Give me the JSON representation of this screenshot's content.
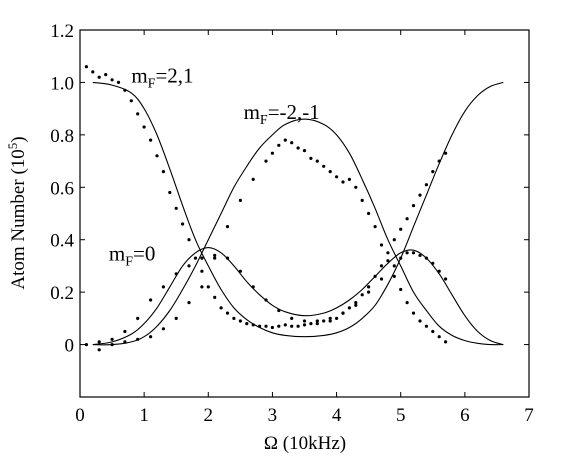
{
  "chart_data": {
    "type": "scatter",
    "title": "",
    "xlabel": "Ω (10kHz)",
    "ylabel": "Atom Number (10",
    "ylabel_sup": "5",
    "ylabel_close": ")",
    "xlim": [
      0,
      7
    ],
    "ylim": [
      -0.2,
      1.2
    ],
    "xticks": [
      "0",
      "1",
      "2",
      "3",
      "4",
      "5",
      "6",
      "7"
    ],
    "yticks": [
      "0",
      "0.2",
      "0.4",
      "0.6",
      "0.8",
      "1.0",
      "1.2"
    ],
    "grid": false,
    "legend": "none",
    "annotations": [
      {
        "main": "m",
        "sub": "F",
        "rest": "=2,1",
        "x": 0.8,
        "y": 1.0
      },
      {
        "main": "m",
        "sub": "F",
        "rest": "=-2,-1",
        "x": 2.55,
        "y": 0.86
      },
      {
        "main": "m",
        "sub": "F",
        "rest": "=0",
        "x": 0.45,
        "y": 0.32
      }
    ],
    "curves": [
      {
        "x": [
          0.2,
          0.5,
          0.8,
          1.0,
          1.2,
          1.4,
          1.6,
          1.8,
          2.0,
          2.2,
          2.4,
          2.6,
          2.8,
          3.0,
          3.2,
          3.5,
          3.8,
          4.0,
          4.2,
          4.4,
          4.6,
          4.8,
          5.0,
          5.2,
          5.4,
          5.6,
          5.8,
          6.0,
          6.2,
          6.4,
          6.6
        ],
        "y": [
          1.0,
          0.99,
          0.96,
          0.9,
          0.8,
          0.67,
          0.53,
          0.4,
          0.3,
          0.21,
          0.14,
          0.095,
          0.065,
          0.045,
          0.035,
          0.03,
          0.035,
          0.045,
          0.065,
          0.1,
          0.15,
          0.23,
          0.33,
          0.45,
          0.57,
          0.69,
          0.8,
          0.89,
          0.95,
          0.985,
          1.0
        ]
      },
      {
        "x": [
          0.2,
          0.5,
          0.8,
          1.0,
          1.2,
          1.4,
          1.6,
          1.8,
          2.0,
          2.2,
          2.4,
          2.6,
          2.8,
          3.0,
          3.2,
          3.5,
          3.8,
          4.0,
          4.2,
          4.4,
          4.6,
          4.8,
          5.0,
          5.2,
          5.4,
          5.6,
          5.8,
          6.0,
          6.2,
          6.4,
          6.6
        ],
        "y": [
          0.0,
          0.0,
          0.01,
          0.03,
          0.07,
          0.13,
          0.21,
          0.3,
          0.4,
          0.5,
          0.6,
          0.68,
          0.75,
          0.8,
          0.84,
          0.86,
          0.84,
          0.8,
          0.73,
          0.63,
          0.52,
          0.4,
          0.3,
          0.2,
          0.13,
          0.07,
          0.035,
          0.015,
          0.005,
          0.0,
          0.0
        ]
      },
      {
        "x": [
          0.2,
          0.5,
          0.8,
          1.0,
          1.2,
          1.4,
          1.6,
          1.8,
          2.0,
          2.2,
          2.4,
          2.6,
          2.8,
          3.0,
          3.2,
          3.5,
          3.8,
          4.0,
          4.2,
          4.4,
          4.6,
          4.8,
          5.0,
          5.2,
          5.4,
          5.6,
          5.8,
          6.0,
          6.2,
          6.4,
          6.6
        ],
        "y": [
          0.0,
          0.01,
          0.04,
          0.08,
          0.14,
          0.22,
          0.3,
          0.35,
          0.37,
          0.35,
          0.3,
          0.24,
          0.19,
          0.15,
          0.125,
          0.11,
          0.12,
          0.14,
          0.17,
          0.21,
          0.26,
          0.31,
          0.35,
          0.36,
          0.33,
          0.27,
          0.19,
          0.11,
          0.05,
          0.015,
          0.0
        ]
      }
    ],
    "series": [
      {
        "x": [
          0.1,
          0.2,
          0.3,
          0.4,
          0.5,
          0.6,
          0.7,
          0.8,
          0.9,
          1.0,
          1.1,
          1.2,
          1.3,
          1.4,
          1.5,
          1.6,
          1.7,
          1.8,
          1.9,
          2.0,
          2.1,
          2.2,
          2.3,
          2.4,
          2.5,
          2.6,
          2.7,
          2.8,
          2.9,
          3.0,
          3.1,
          3.2,
          3.3,
          3.4,
          3.5,
          3.6,
          3.7,
          3.8,
          3.9,
          4.0,
          4.1,
          4.2,
          4.3,
          4.4,
          4.5,
          4.6,
          4.7,
          4.8,
          4.9,
          5.0,
          5.1,
          5.2,
          5.3,
          5.4,
          5.5,
          5.6,
          5.7
        ],
        "y": [
          1.06,
          1.04,
          1.02,
          1.03,
          1.01,
          1.0,
          0.97,
          0.93,
          0.88,
          0.83,
          0.78,
          0.72,
          0.66,
          0.58,
          0.52,
          0.46,
          0.4,
          0.33,
          0.28,
          0.22,
          0.18,
          0.14,
          0.12,
          0.1,
          0.09,
          0.08,
          0.075,
          0.07,
          0.07,
          0.065,
          0.07,
          0.075,
          0.07,
          0.07,
          0.075,
          0.08,
          0.08,
          0.09,
          0.09,
          0.1,
          0.12,
          0.14,
          0.16,
          0.19,
          0.22,
          0.26,
          0.3,
          0.35,
          0.4,
          0.44,
          0.48,
          0.53,
          0.57,
          0.61,
          0.66,
          0.7,
          0.73
        ]
      },
      {
        "x": [
          0.1,
          0.3,
          0.5,
          0.7,
          0.9,
          1.1,
          1.3,
          1.5,
          1.7,
          1.9,
          2.1,
          2.3,
          2.5,
          2.7,
          2.9,
          3.0,
          3.1,
          3.2,
          3.3,
          3.4,
          3.5,
          3.6,
          3.7,
          3.8,
          3.9,
          4.0,
          4.1,
          4.2,
          4.3,
          4.4,
          4.5,
          4.6,
          4.7,
          4.8,
          4.9,
          5.0,
          5.1,
          5.2,
          5.3,
          5.4,
          5.5,
          5.6,
          5.7
        ],
        "y": [
          0.0,
          -0.02,
          0.0,
          0.01,
          0.02,
          0.03,
          0.06,
          0.1,
          0.16,
          0.22,
          0.33,
          0.45,
          0.55,
          0.63,
          0.7,
          0.73,
          0.76,
          0.78,
          0.77,
          0.75,
          0.74,
          0.71,
          0.7,
          0.68,
          0.66,
          0.64,
          0.62,
          0.63,
          0.6,
          0.55,
          0.5,
          0.45,
          0.38,
          0.32,
          0.26,
          0.21,
          0.16,
          0.12,
          0.09,
          0.07,
          0.05,
          0.03,
          0.01
        ]
      },
      {
        "x": [
          0.3,
          0.5,
          0.7,
          0.9,
          1.1,
          1.3,
          1.5,
          1.7,
          1.9,
          2.1,
          2.3,
          2.5,
          2.7,
          2.9,
          3.1,
          3.3,
          3.5,
          3.7,
          3.9,
          4.1,
          4.3,
          4.5,
          4.7,
          4.9,
          5.0,
          5.1,
          5.2,
          5.3,
          5.4,
          5.5,
          5.6,
          5.7
        ],
        "y": [
          0.01,
          0.02,
          0.05,
          0.1,
          0.17,
          0.22,
          0.27,
          0.3,
          0.33,
          0.34,
          0.33,
          0.28,
          0.22,
          0.17,
          0.13,
          0.1,
          0.09,
          0.09,
          0.1,
          0.12,
          0.15,
          0.2,
          0.25,
          0.3,
          0.33,
          0.35,
          0.35,
          0.34,
          0.33,
          0.31,
          0.28,
          0.25
        ]
      }
    ]
  }
}
